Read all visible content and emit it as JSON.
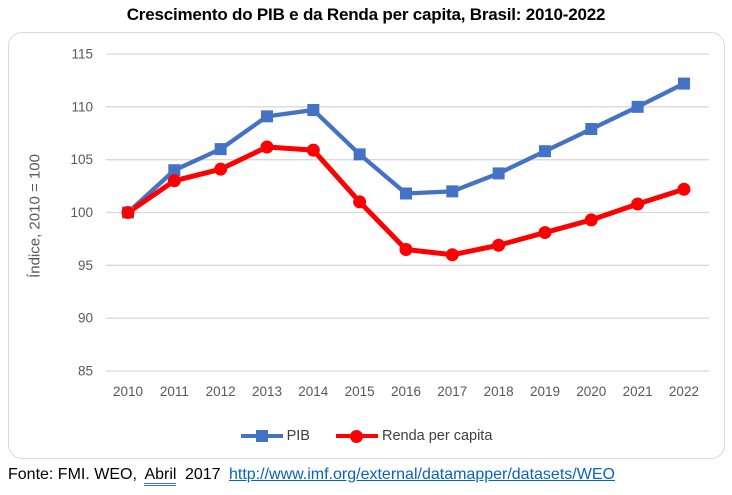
{
  "chart_data": {
    "type": "line",
    "title": "Crescimento do PIB e da Renda per capita, Brasil: 2010-2022",
    "x": [
      2010,
      2011,
      2012,
      2013,
      2014,
      2015,
      2016,
      2017,
      2018,
      2019,
      2020,
      2021,
      2022
    ],
    "series": [
      {
        "name": "PIB",
        "color": "#4472C4",
        "marker": "square",
        "values": [
          100,
          104,
          106,
          109.1,
          109.7,
          105.5,
          101.8,
          102,
          103.7,
          105.8,
          107.9,
          110,
          112.2
        ]
      },
      {
        "name": "Renda per capita",
        "color": "#FF0000",
        "marker": "circle",
        "values": [
          100,
          103,
          104.1,
          106.2,
          105.9,
          101,
          96.5,
          96,
          96.9,
          98.1,
          99.3,
          100.8,
          102.2
        ]
      }
    ],
    "xlabel": "",
    "ylabel": "Índice, 2010 = 100",
    "ylim": [
      85,
      115
    ],
    "yticks": [
      85,
      90,
      95,
      100,
      105,
      110,
      115
    ],
    "grid": "horizontal",
    "legend_position": "bottom"
  },
  "footer": {
    "source_prefix": "Fonte: FMI. WEO,",
    "underlined_word": "Abril",
    "source_year": "2017",
    "link_text": "http://www.imf.org/external/datamapper/datasets/WEO"
  },
  "colors": {
    "pib_blue": "#4472C4",
    "renda_red": "#FF0000",
    "gridline": "#D9D9D9",
    "axis_text": "#595959",
    "link_blue": "#0563C1"
  }
}
